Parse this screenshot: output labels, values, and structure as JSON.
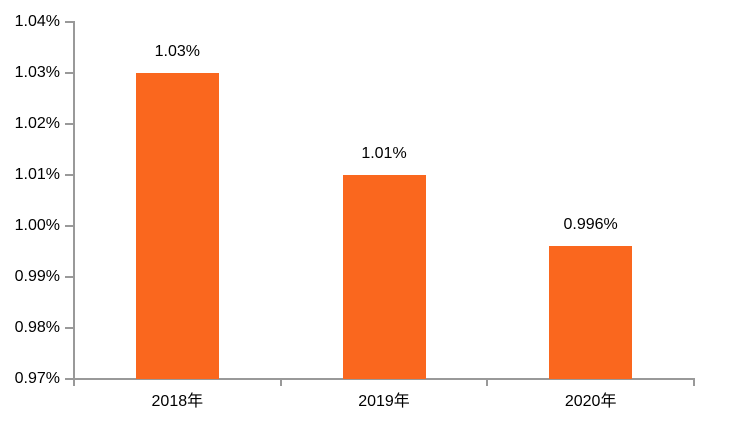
{
  "chart_data": {
    "type": "bar",
    "title": "",
    "xlabel": "",
    "ylabel": "",
    "categories": [
      "2018年",
      "2019年",
      "2020年"
    ],
    "values": [
      1.03,
      1.01,
      0.996
    ],
    "data_labels": [
      "1.03%",
      "1.01%",
      "0.996%"
    ],
    "y_tick_labels": [
      "1.04%",
      "1.03%",
      "1.02%",
      "1.01%",
      "1.00%",
      "0.99%",
      "0.98%",
      "0.97%"
    ],
    "ylim": [
      0.97,
      1.04
    ],
    "y_step": 0.01,
    "grid": false,
    "legend": "none",
    "bar_color": "#FA671E",
    "axis_color": "#999999",
    "label_color": "#000000",
    "background_color": "#FFFFFF"
  }
}
